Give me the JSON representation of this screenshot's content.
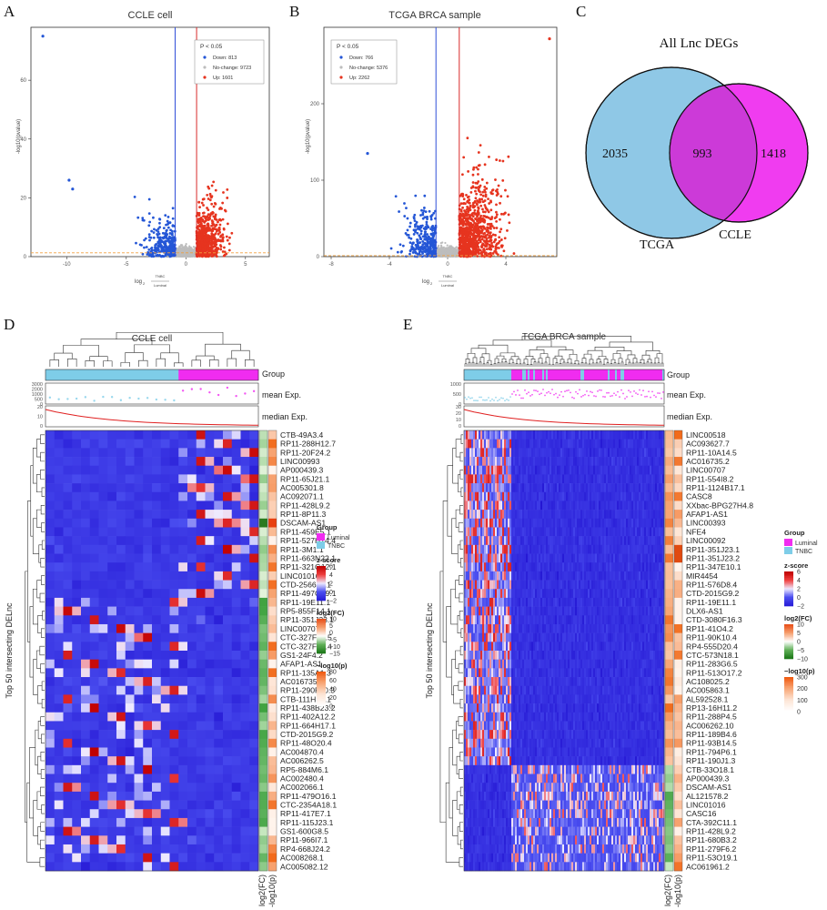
{
  "panel_letters": [
    "A",
    "B",
    "C",
    "D",
    "E"
  ],
  "chart_data": [
    {
      "type": "scatter",
      "panel": "A",
      "title": "CCLE cell",
      "ylabel": "-log10(pvalue)",
      "xlabel_parts": [
        "log",
        "2",
        "TNBC",
        "Luminal"
      ],
      "xlim": [
        -13,
        7
      ],
      "ylim": [
        0,
        78
      ],
      "xticks": [
        -10,
        -5,
        0,
        5
      ],
      "yticks": [
        0,
        20,
        40,
        60
      ],
      "fc_cutoffs": [
        -0.9,
        0.9
      ],
      "p_cutoff": 1.3,
      "legend": {
        "title": "P < 0.05",
        "entries": [
          "Down: 813",
          "No-change: 9723",
          "Up: 1601"
        ]
      },
      "colors": {
        "down": "#2456d6",
        "nochange": "#bdbdbd",
        "up": "#e6341f",
        "vline_down": "#2f4fd8",
        "vline_up": "#d82a2a",
        "hline": "#f0a040"
      },
      "counts": {
        "down": 813,
        "nochange": 9723,
        "up": 1601
      },
      "highlight_points": [
        {
          "x": -12,
          "y": 75
        },
        {
          "x": -9.8,
          "y": 26
        },
        {
          "x": -9.5,
          "y": 23
        }
      ]
    },
    {
      "type": "scatter",
      "panel": "B",
      "title": "TCGA BRCA sample",
      "ylabel": "-log10(pvalue)",
      "xlabel_parts": [
        "log",
        "2",
        "TNBC",
        "Luminal"
      ],
      "xlim": [
        -8.5,
        7.5
      ],
      "ylim": [
        0,
        300
      ],
      "xticks": [
        -8,
        -4,
        0,
        4
      ],
      "yticks": [
        0,
        100,
        200
      ],
      "fc_cutoffs": [
        -0.8,
        0.8
      ],
      "p_cutoff": 1.3,
      "legend": {
        "title": "P < 0.05",
        "entries": [
          "Down: 766",
          "No-change: 5376",
          "Up: 2262"
        ]
      },
      "colors": {
        "down": "#2456d6",
        "nochange": "#bdbdbd",
        "up": "#e6341f",
        "vline_down": "#2f4fd8",
        "vline_up": "#d82a2a",
        "hline": "#f0a040"
      },
      "counts": {
        "down": 766,
        "nochange": 5376,
        "up": 2262
      },
      "highlight_points": [
        {
          "x": 7,
          "y": 285
        },
        {
          "x": -5.5,
          "y": 135
        }
      ]
    },
    {
      "type": "venn",
      "panel": "C",
      "title": "All Lnc DEGs",
      "sets": [
        {
          "name": "TCGA",
          "only": 2035,
          "color": "#8fc8e6"
        },
        {
          "name": "CCLE",
          "only": 1418,
          "color": "#f03cf0"
        }
      ],
      "intersection": 993,
      "intersection_color": "#cc3ad8"
    },
    {
      "type": "heatmap",
      "panel": "D",
      "title": "CCLE cell",
      "ylabel": "Top 50 intersecting DELnc",
      "n_cols": 24,
      "group_split": 15,
      "track_labels": [
        "Group",
        "mean Exp.",
        "median Exp."
      ],
      "mean_ticks": [
        "3000",
        "2000",
        "1000",
        "500",
        "0"
      ],
      "median_ticks": [
        "20",
        "10",
        "0"
      ],
      "bottom_labels": [
        "log2(FC)",
        "-log10(p)"
      ],
      "genes": [
        "CTB-49A3.4",
        "RP11-288H12.7",
        "RP11-20F24.2",
        "LINC00993",
        "AP000439.3",
        "RP11-65J21.1",
        "AC005301.8",
        "AC092071.1",
        "RP11-428L9.2",
        "RP11-8P11.3",
        "DSCAM-AS1",
        "RP11-459E5.1",
        "RP11-527H14.4",
        "RP11-3M1.1",
        "RP11-663N22.1",
        "RP11-321G12.1",
        "LINC01016",
        "CTD-2566J3.1",
        "RP11-497G19.1",
        "RP11-19E11.1",
        "RP5-855F14.1",
        "RP11-351J23.1",
        "LINC00707",
        "CTC-327F10.5",
        "CTC-327F10.4",
        "GS1-24F4.2",
        "AFAP1-AS1",
        "RP11-135A1.3",
        "AC016735.2",
        "RP11-290F20.3",
        "CTB-111H14.1",
        "RP11-438B23.2",
        "RP11-402A12.2",
        "RP11-664H17.1",
        "CTD-2015G9.2",
        "RP11-48O20.4",
        "AC004870.4",
        "AC006262.5",
        "RP5-884M6.1",
        "AC002480.4",
        "AC002066.1",
        "RP11-479O16.1",
        "CTC-2354A18.1",
        "RP11-417E7.1",
        "RP11-115J23.1",
        "GS1-600G8.5",
        "RP11-966I7.1",
        "RP4-668J24.2",
        "AC008268.1",
        "AC005082.12"
      ],
      "legends": [
        {
          "title": "Group",
          "entries": [
            "Luminal",
            "TNBC"
          ],
          "colors": [
            "#f02cf0",
            "#7ecde8"
          ]
        },
        {
          "title": "z-score",
          "ticks": [
            "6",
            "4",
            "2",
            "0",
            "−2"
          ]
        },
        {
          "title": "log2(FC)",
          "ticks": [
            "10",
            "5",
            "0",
            "−5",
            "−10",
            "−15"
          ]
        },
        {
          "title": "−log10(p)",
          "ticks": [
            "80",
            "60",
            "40",
            "20",
            "0"
          ]
        }
      ]
    },
    {
      "type": "heatmap",
      "panel": "E",
      "title": "TCGA BRCA sample",
      "ylabel": "Top 50 intersecting DELnc",
      "n_cols": 110,
      "group_split": 26,
      "track_labels": [
        "Group",
        "mean Exp.",
        "median Exp."
      ],
      "mean_ticks": [
        "1000",
        "500",
        "0"
      ],
      "median_ticks": [
        "30",
        "20",
        "10",
        "0"
      ],
      "bottom_labels": [
        "log2(FC)",
        "-log10(p)"
      ],
      "genes": [
        "LINC00518",
        "AC093627.7",
        "RP11-10A14.5",
        "AC016735.2",
        "LINC00707",
        "RP11-554I8.2",
        "RP11-1124B17.1",
        "CASC8",
        "XXbac-BPG27H4.8",
        "AFAP1-AS1",
        "LINC00393",
        "NFE4",
        "LINC00092",
        "RP11-351J23.1",
        "RP11-351J23.2",
        "RP11-347E10.1",
        "MIR4454",
        "RP11-576D8.4",
        "CTD-2015G9.2",
        "RP11-19E11.1",
        "DLX6-AS1",
        "CTD-3080F16.3",
        "RP11-41O4.2",
        "RP11-90K10.4",
        "RP4-555D20.4",
        "CTC-573N18.1",
        "RP11-283G6.5",
        "RP11-513O17.2",
        "AC108025.2",
        "AC005863.1",
        "AL592528.1",
        "RP13-16H11.2",
        "RP11-288P4.5",
        "AC006262.10",
        "RP11-189B4.6",
        "RP11-93B14.5",
        "RP11-794P6.1",
        "RP11-190J1.3",
        "CTB-33O18.1",
        "AP000439.3",
        "DSCAM-AS1",
        "AL121578.2",
        "LINC01016",
        "CASC16",
        "CTA-392C11.1",
        "RP11-428L9.2",
        "RP11-680B3.2",
        "RP11-279F6.2",
        "RP11-53O19.1",
        "AC061961.2"
      ],
      "legends": [
        {
          "title": "Group",
          "entries": [
            "Luminal",
            "TNBC"
          ],
          "colors": [
            "#f02cf0",
            "#7ecde8"
          ]
        },
        {
          "title": "z-score",
          "ticks": [
            "6",
            "4",
            "2",
            "0",
            "−2"
          ]
        },
        {
          "title": "log2(FC)",
          "ticks": [
            "10",
            "5",
            "0",
            "−5",
            "−10"
          ]
        },
        {
          "title": "−log10(p)",
          "ticks": [
            "300",
            "200",
            "100",
            "0"
          ]
        }
      ]
    }
  ]
}
